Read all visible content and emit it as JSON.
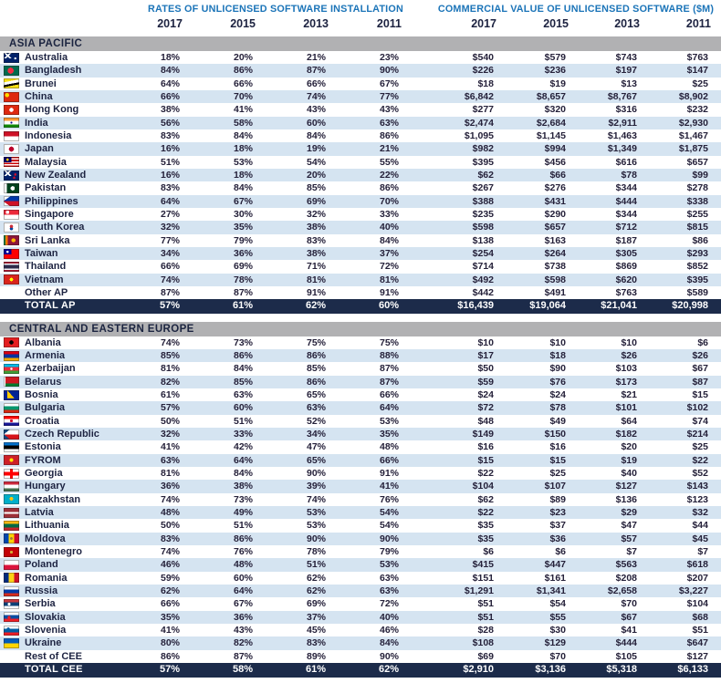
{
  "colors": {
    "group_header_text": "#1b74b8",
    "year_text": "#1c2240",
    "section_band_bg": "#b1b1b3",
    "section_text": "#1b2440",
    "stripe_bg": "#d5e4f1",
    "total_bg": "#1c2b4a",
    "total_text": "#ffffff",
    "number_text": "#25213a",
    "label_text": "#1e2442"
  },
  "chart_data": {
    "type": "table",
    "group_headers": [
      "RATES OF UNLICENSED SOFTWARE INSTALLATION",
      "COMMERCIAL VALUE OF UNLICENSED SOFTWARE ($M)"
    ],
    "columns": [
      "2017",
      "2015",
      "2013",
      "2011",
      "2017",
      "2015",
      "2013",
      "2011"
    ],
    "sections": [
      {
        "title": "ASIA PACIFIC",
        "rows": [
          {
            "country": "Australia",
            "flag": "flag-australia",
            "rates": [
              "18%",
              "20%",
              "21%",
              "23%"
            ],
            "values": [
              "$540",
              "$579",
              "$743",
              "$763"
            ]
          },
          {
            "country": "Bangladesh",
            "flag": "flag-bangladesh",
            "rates": [
              "84%",
              "86%",
              "87%",
              "90%"
            ],
            "values": [
              "$226",
              "$236",
              "$197",
              "$147"
            ]
          },
          {
            "country": "Brunei",
            "flag": "flag-brunei",
            "rates": [
              "64%",
              "66%",
              "66%",
              "67%"
            ],
            "values": [
              "$18",
              "$19",
              "$13",
              "$25"
            ]
          },
          {
            "country": "China",
            "flag": "flag-china",
            "rates": [
              "66%",
              "70%",
              "74%",
              "77%"
            ],
            "values": [
              "$6,842",
              "$8,657",
              "$8,767",
              "$8,902"
            ]
          },
          {
            "country": "Hong Kong",
            "flag": "flag-hong-kong",
            "rates": [
              "38%",
              "41%",
              "43%",
              "43%"
            ],
            "values": [
              "$277",
              "$320",
              "$316",
              "$232"
            ]
          },
          {
            "country": "India",
            "flag": "flag-india",
            "rates": [
              "56%",
              "58%",
              "60%",
              "63%"
            ],
            "values": [
              "$2,474",
              "$2,684",
              "$2,911",
              "$2,930"
            ]
          },
          {
            "country": "Indonesia",
            "flag": "flag-indonesia",
            "rates": [
              "83%",
              "84%",
              "84%",
              "86%"
            ],
            "values": [
              "$1,095",
              "$1,145",
              "$1,463",
              "$1,467"
            ]
          },
          {
            "country": "Japan",
            "flag": "flag-japan",
            "rates": [
              "16%",
              "18%",
              "19%",
              "21%"
            ],
            "values": [
              "$982",
              "$994",
              "$1,349",
              "$1,875"
            ]
          },
          {
            "country": "Malaysia",
            "flag": "flag-malaysia",
            "rates": [
              "51%",
              "53%",
              "54%",
              "55%"
            ],
            "values": [
              "$395",
              "$456",
              "$616",
              "$657"
            ]
          },
          {
            "country": "New Zealand",
            "flag": "flag-new-zealand",
            "rates": [
              "16%",
              "18%",
              "20%",
              "22%"
            ],
            "values": [
              "$62",
              "$66",
              "$78",
              "$99"
            ]
          },
          {
            "country": "Pakistan",
            "flag": "flag-pakistan",
            "rates": [
              "83%",
              "84%",
              "85%",
              "86%"
            ],
            "values": [
              "$267",
              "$276",
              "$344",
              "$278"
            ]
          },
          {
            "country": "Philippines",
            "flag": "flag-philippines",
            "rates": [
              "64%",
              "67%",
              "69%",
              "70%"
            ],
            "values": [
              "$388",
              "$431",
              "$444",
              "$338"
            ]
          },
          {
            "country": "Singapore",
            "flag": "flag-singapore",
            "rates": [
              "27%",
              "30%",
              "32%",
              "33%"
            ],
            "values": [
              "$235",
              "$290",
              "$344",
              "$255"
            ]
          },
          {
            "country": "South Korea",
            "flag": "flag-south-korea",
            "rates": [
              "32%",
              "35%",
              "38%",
              "40%"
            ],
            "values": [
              "$598",
              "$657",
              "$712",
              "$815"
            ]
          },
          {
            "country": "Sri Lanka",
            "flag": "flag-sri-lanka",
            "rates": [
              "77%",
              "79%",
              "83%",
              "84%"
            ],
            "values": [
              "$138",
              "$163",
              "$187",
              "$86"
            ]
          },
          {
            "country": "Taiwan",
            "flag": "flag-taiwan",
            "rates": [
              "34%",
              "36%",
              "38%",
              "37%"
            ],
            "values": [
              "$254",
              "$264",
              "$305",
              "$293"
            ]
          },
          {
            "country": "Thailand",
            "flag": "flag-thailand",
            "rates": [
              "66%",
              "69%",
              "71%",
              "72%"
            ],
            "values": [
              "$714",
              "$738",
              "$869",
              "$852"
            ]
          },
          {
            "country": "Vietnam",
            "flag": "flag-vietnam",
            "rates": [
              "74%",
              "78%",
              "81%",
              "81%"
            ],
            "values": [
              "$492",
              "$598",
              "$620",
              "$395"
            ]
          },
          {
            "country": "Other AP",
            "flag": null,
            "rates": [
              "87%",
              "87%",
              "91%",
              "91%"
            ],
            "values": [
              "$442",
              "$491",
              "$763",
              "$589"
            ]
          }
        ],
        "total": {
          "label": "TOTAL AP",
          "rates": [
            "57%",
            "61%",
            "62%",
            "60%"
          ],
          "values": [
            "$16,439",
            "$19,064",
            "$21,041",
            "$20,998"
          ]
        }
      },
      {
        "title": "CENTRAL AND EASTERN EUROPE",
        "rows": [
          {
            "country": "Albania",
            "flag": "flag-albania",
            "rates": [
              "74%",
              "73%",
              "75%",
              "75%"
            ],
            "values": [
              "$10",
              "$10",
              "$10",
              "$6"
            ]
          },
          {
            "country": "Armenia",
            "flag": "flag-armenia",
            "rates": [
              "85%",
              "86%",
              "86%",
              "88%"
            ],
            "values": [
              "$17",
              "$18",
              "$26",
              "$26"
            ]
          },
          {
            "country": "Azerbaijan",
            "flag": "flag-azerbaijan",
            "rates": [
              "81%",
              "84%",
              "85%",
              "87%"
            ],
            "values": [
              "$50",
              "$90",
              "$103",
              "$67"
            ]
          },
          {
            "country": "Belarus",
            "flag": "flag-belarus",
            "rates": [
              "82%",
              "85%",
              "86%",
              "87%"
            ],
            "values": [
              "$59",
              "$76",
              "$173",
              "$87"
            ]
          },
          {
            "country": "Bosnia",
            "flag": "flag-bosnia",
            "rates": [
              "61%",
              "63%",
              "65%",
              "66%"
            ],
            "values": [
              "$24",
              "$24",
              "$21",
              "$15"
            ]
          },
          {
            "country": "Bulgaria",
            "flag": "flag-bulgaria",
            "rates": [
              "57%",
              "60%",
              "63%",
              "64%"
            ],
            "values": [
              "$72",
              "$78",
              "$101",
              "$102"
            ]
          },
          {
            "country": "Croatia",
            "flag": "flag-croatia",
            "rates": [
              "50%",
              "51%",
              "52%",
              "53%"
            ],
            "values": [
              "$48",
              "$49",
              "$64",
              "$74"
            ]
          },
          {
            "country": "Czech Republic",
            "flag": "flag-czech-republic",
            "rates": [
              "32%",
              "33%",
              "34%",
              "35%"
            ],
            "values": [
              "$149",
              "$150",
              "$182",
              "$214"
            ]
          },
          {
            "country": "Estonia",
            "flag": "flag-estonia",
            "rates": [
              "41%",
              "42%",
              "47%",
              "48%"
            ],
            "values": [
              "$16",
              "$16",
              "$20",
              "$25"
            ]
          },
          {
            "country": "FYROM",
            "flag": "flag-fyrom",
            "rates": [
              "63%",
              "64%",
              "65%",
              "66%"
            ],
            "values": [
              "$15",
              "$15",
              "$19",
              "$22"
            ]
          },
          {
            "country": "Georgia",
            "flag": "flag-georgia",
            "rates": [
              "81%",
              "84%",
              "90%",
              "91%"
            ],
            "values": [
              "$22",
              "$25",
              "$40",
              "$52"
            ]
          },
          {
            "country": "Hungary",
            "flag": "flag-hungary",
            "rates": [
              "36%",
              "38%",
              "39%",
              "41%"
            ],
            "values": [
              "$104",
              "$107",
              "$127",
              "$143"
            ]
          },
          {
            "country": "Kazakhstan",
            "flag": "flag-kazakhstan",
            "rates": [
              "74%",
              "73%",
              "74%",
              "76%"
            ],
            "values": [
              "$62",
              "$89",
              "$136",
              "$123"
            ]
          },
          {
            "country": "Latvia",
            "flag": "flag-latvia",
            "rates": [
              "48%",
              "49%",
              "53%",
              "54%"
            ],
            "values": [
              "$22",
              "$23",
              "$29",
              "$32"
            ]
          },
          {
            "country": "Lithuania",
            "flag": "flag-lithuania",
            "rates": [
              "50%",
              "51%",
              "53%",
              "54%"
            ],
            "values": [
              "$35",
              "$37",
              "$47",
              "$44"
            ]
          },
          {
            "country": "Moldova",
            "flag": "flag-moldova",
            "rates": [
              "83%",
              "86%",
              "90%",
              "90%"
            ],
            "values": [
              "$35",
              "$36",
              "$57",
              "$45"
            ]
          },
          {
            "country": "Montenegro",
            "flag": "flag-montenegro",
            "rates": [
              "74%",
              "76%",
              "78%",
              "79%"
            ],
            "values": [
              "$6",
              "$6",
              "$7",
              "$7"
            ]
          },
          {
            "country": "Poland",
            "flag": "flag-poland",
            "rates": [
              "46%",
              "48%",
              "51%",
              "53%"
            ],
            "values": [
              "$415",
              "$447",
              "$563",
              "$618"
            ]
          },
          {
            "country": "Romania",
            "flag": "flag-romania",
            "rates": [
              "59%",
              "60%",
              "62%",
              "63%"
            ],
            "values": [
              "$151",
              "$161",
              "$208",
              "$207"
            ]
          },
          {
            "country": "Russia",
            "flag": "flag-russia",
            "rates": [
              "62%",
              "64%",
              "62%",
              "63%"
            ],
            "values": [
              "$1,291",
              "$1,341",
              "$2,658",
              "$3,227"
            ]
          },
          {
            "country": "Serbia",
            "flag": "flag-serbia",
            "rates": [
              "66%",
              "67%",
              "69%",
              "72%"
            ],
            "values": [
              "$51",
              "$54",
              "$70",
              "$104"
            ]
          },
          {
            "country": "Slovakia",
            "flag": "flag-slovakia",
            "rates": [
              "35%",
              "36%",
              "37%",
              "40%"
            ],
            "values": [
              "$51",
              "$55",
              "$67",
              "$68"
            ]
          },
          {
            "country": "Slovenia",
            "flag": "flag-slovenia",
            "rates": [
              "41%",
              "43%",
              "45%",
              "46%"
            ],
            "values": [
              "$28",
              "$30",
              "$41",
              "$51"
            ]
          },
          {
            "country": "Ukraine",
            "flag": "flag-ukraine",
            "rates": [
              "80%",
              "82%",
              "83%",
              "84%"
            ],
            "values": [
              "$108",
              "$129",
              "$444",
              "$647"
            ]
          },
          {
            "country": "Rest of CEE",
            "flag": null,
            "rates": [
              "86%",
              "87%",
              "89%",
              "90%"
            ],
            "values": [
              "$69",
              "$70",
              "$105",
              "$127"
            ]
          }
        ],
        "total": {
          "label": "TOTAL CEE",
          "rates": [
            "57%",
            "58%",
            "61%",
            "62%"
          ],
          "values": [
            "$2,910",
            "$3,136",
            "$5,318",
            "$6,133"
          ]
        }
      }
    ]
  }
}
